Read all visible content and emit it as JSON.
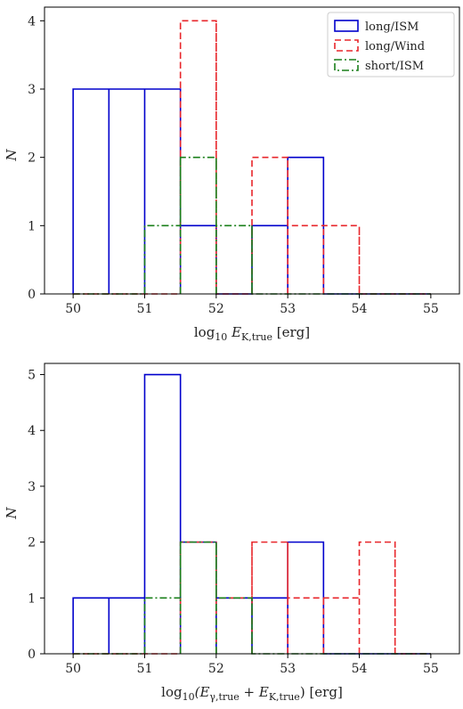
{
  "chart_data": [
    {
      "type": "histogram",
      "title": "",
      "xlabel": "log10 E_K,true [erg]",
      "xlabel_parts": {
        "pre": "log",
        "sub1": "10",
        "mid": " E",
        "sub2": "K,true",
        "post": " [erg]"
      },
      "ylabel": "N",
      "xlim": [
        49.6,
        55.4
      ],
      "ylim": [
        0,
        4.2
      ],
      "xticks": [
        50,
        51,
        52,
        53,
        54,
        55
      ],
      "yticks": [
        0,
        1,
        2,
        3,
        4
      ],
      "grid": false,
      "legend": {
        "position": "top-right",
        "show": true
      },
      "bin_edges": [
        50,
        50.5,
        51,
        51.5,
        52,
        52.5,
        53,
        53.5,
        54,
        54.5,
        55
      ],
      "series": [
        {
          "name": "long/ISM",
          "color": "#0000cc",
          "style": "solid",
          "counts": [
            3,
            3,
            3,
            1,
            0,
            1,
            2,
            0,
            0,
            0
          ]
        },
        {
          "name": "long/Wind",
          "color": "#e8262b",
          "style": "dashed",
          "counts": [
            0,
            0,
            0,
            4,
            0,
            2,
            1,
            1,
            0,
            0
          ]
        },
        {
          "name": "short/ISM",
          "color": "#1a7f1a",
          "style": "dashdot",
          "counts": [
            0,
            0,
            1,
            2,
            1,
            0,
            0,
            0,
            0,
            0
          ]
        }
      ]
    },
    {
      "type": "histogram",
      "title": "",
      "xlabel": "log10(E_γ,true + E_K,true) [erg]",
      "xlabel_parts": {
        "pre": "log",
        "sub1": "10",
        "mid1": "(E",
        "sub2": "γ,true",
        "mid2": " + E",
        "sub3": "K,true",
        "post": ") [erg]"
      },
      "ylabel": "N",
      "xlim": [
        49.6,
        55.4
      ],
      "ylim": [
        0,
        5.2
      ],
      "xticks": [
        50,
        51,
        52,
        53,
        54,
        55
      ],
      "yticks": [
        0,
        1,
        2,
        3,
        4,
        5
      ],
      "grid": false,
      "legend": {
        "show": false
      },
      "bin_edges": [
        50,
        50.5,
        51,
        51.5,
        52,
        52.5,
        53,
        53.5,
        54,
        54.5,
        55
      ],
      "series": [
        {
          "name": "long/ISM",
          "color": "#0000cc",
          "style": "solid",
          "counts": [
            1,
            1,
            5,
            2,
            1,
            1,
            2,
            0,
            0,
            0
          ]
        },
        {
          "name": "long/Wind",
          "color": "#e8262b",
          "style": "dashed",
          "counts": [
            0,
            0,
            0,
            2,
            1,
            2,
            1,
            1,
            2,
            0
          ]
        },
        {
          "name": "short/ISM",
          "color": "#1a7f1a",
          "style": "dashdot",
          "counts": [
            0,
            0,
            1,
            2,
            1,
            0,
            0,
            0,
            0,
            0
          ]
        }
      ]
    }
  ]
}
